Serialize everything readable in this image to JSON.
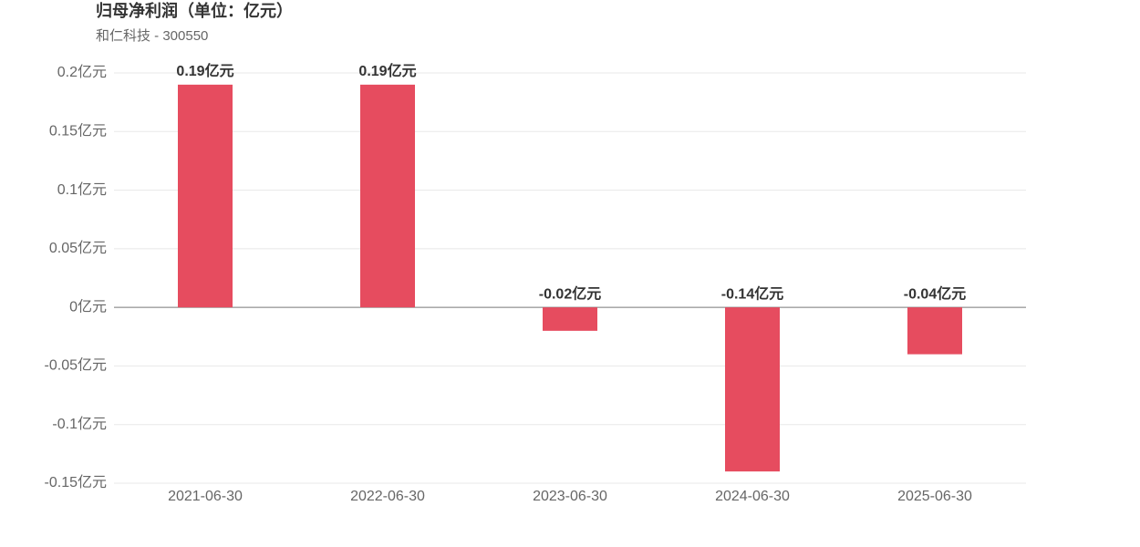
{
  "chart_data": {
    "type": "bar",
    "title": "归母净利润（单位：亿元）",
    "subtitle": "和仁科技 - 300550",
    "categories": [
      "2021-06-30",
      "2022-06-30",
      "2023-06-30",
      "2024-06-30",
      "2025-06-30"
    ],
    "values": [
      0.19,
      0.19,
      -0.02,
      -0.14,
      -0.04
    ],
    "value_labels": [
      "0.19亿元",
      "0.19亿元",
      "-0.02亿元",
      "-0.14亿元",
      "-0.04亿元"
    ],
    "color": "#e64c5f",
    "ylim": [
      -0.15,
      0.2
    ],
    "yticks": [
      {
        "value": -0.15,
        "label": "-0.15亿元"
      },
      {
        "value": -0.1,
        "label": "-0.1亿元"
      },
      {
        "value": -0.05,
        "label": "-0.05亿元"
      },
      {
        "value": 0,
        "label": "0亿元"
      },
      {
        "value": 0.05,
        "label": "0.05亿元"
      },
      {
        "value": 0.1,
        "label": "0.1亿元"
      },
      {
        "value": 0.15,
        "label": "0.15亿元"
      },
      {
        "value": 0.2,
        "label": "0.2亿元"
      }
    ],
    "grid": true
  }
}
